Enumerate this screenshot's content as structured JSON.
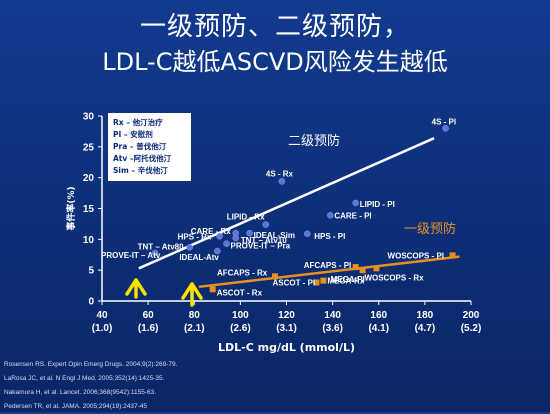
{
  "title_line1": "一级预防、二级预防，",
  "title_line2": "LDL-C越低ASCVD风险发生越低",
  "legend": [
    "Rx – 他汀治疗",
    "PI – 安慰剂",
    "Pra – 普伐他汀",
    "Atv –阿托伐他汀",
    "Sim – 辛伐他汀"
  ],
  "references": [
    "Rosensen RS. Expert Opin Emerg Drugs. 2004;9(2):269-79.",
    "LaRosa JC, et al. N Engl J Med. 2005;352(14):1425-35.",
    "Nakamura H, et al. Lancet. 2006;368(9542):1155-63.",
    "Pedersen TR, et al. JAMA. 2005;294(19):2437-45"
  ],
  "colors": {
    "secondary": "#5b74d6",
    "primary": "#e8901f",
    "line_secondary": "#ffffff",
    "arrow": "#f7e200"
  },
  "chart_data": {
    "type": "scatter",
    "xlabel": "LDL-C mg/dL (mmol/L)",
    "ylabel": "事件率(%)",
    "xlim": [
      40,
      200
    ],
    "ylim": [
      0,
      30
    ],
    "x_ticks": [
      {
        "v": 40,
        "l1": "40",
        "l2": "(1.0)"
      },
      {
        "v": 60,
        "l1": "60",
        "l2": "(1.6)"
      },
      {
        "v": 80,
        "l1": "80",
        "l2": "(2.1)"
      },
      {
        "v": 100,
        "l1": "100",
        "l2": "(2.6)"
      },
      {
        "v": 120,
        "l1": "120",
        "l2": "(3.1)"
      },
      {
        "v": 140,
        "l1": "140",
        "l2": "(3.6)"
      },
      {
        "v": 160,
        "l1": "160",
        "l2": "(4.1)"
      },
      {
        "v": 180,
        "l1": "180",
        "l2": "(4.7)"
      },
      {
        "v": 200,
        "l1": "200",
        "l2": "(5.2)"
      }
    ],
    "y_ticks": [
      0,
      5,
      10,
      15,
      20,
      25,
      30
    ],
    "series": [
      {
        "name": "二级预防",
        "marker": "circle",
        "points": [
          {
            "label": "4S - Pl",
            "x": 189,
            "y": 28.0
          },
          {
            "label": "4S - Rx",
            "x": 118,
            "y": 19.4
          },
          {
            "label": "LIPID - Pl",
            "x": 150,
            "y": 15.9
          },
          {
            "label": "CARE - Pl",
            "x": 139,
            "y": 13.9
          },
          {
            "label": "LIPID - Rx",
            "x": 111,
            "y": 12.4
          },
          {
            "label": "IDEAL-Sim",
            "x": 104,
            "y": 11.0
          },
          {
            "label": "CARE - Rx",
            "x": 98,
            "y": 11.0
          },
          {
            "label": "HPS - Rx",
            "x": 91,
            "y": 10.5
          },
          {
            "label": "TNT – Atv10",
            "x": 98,
            "y": 10.2
          },
          {
            "label": "HPS - Pl",
            "x": 129,
            "y": 10.9
          },
          {
            "label": "PROVE-IT – Pra",
            "x": 94,
            "y": 9.3
          },
          {
            "label": "IDEAL-Atv",
            "x": 90,
            "y": 8.1
          },
          {
            "label": "TNT – Atv80",
            "x": 78,
            "y": 8.7
          },
          {
            "label": "PROVE-IT – Atv",
            "x": 63,
            "y": 7.8
          }
        ]
      },
      {
        "name": "一级预防",
        "marker": "square",
        "points": [
          {
            "label": "AFCAPS - Rx",
            "x": 115,
            "y": 4.0
          },
          {
            "label": "ASCOT - Pl",
            "x": 133,
            "y": 3.0
          },
          {
            "label": "MEGA-Rx",
            "x": 136,
            "y": 3.3
          },
          {
            "label": "ASCOT - Rx",
            "x": 88,
            "y": 1.9
          },
          {
            "label": "AFCAPS - Pl",
            "x": 150,
            "y": 5.5
          },
          {
            "label": "MEGA-Pl",
            "x": 153,
            "y": 5.0
          },
          {
            "label": "WOSCOPS - Pl",
            "x": 192,
            "y": 7.4
          },
          {
            "label": "WOSCOPS - Rx",
            "x": 159,
            "y": 5.3
          }
        ]
      }
    ],
    "trend_lines": [
      {
        "name": "二级预防",
        "from": [
          56,
          5.3
        ],
        "to": [
          184,
          26.4
        ]
      },
      {
        "name": "一级预防",
        "from": [
          82,
          2.3
        ],
        "to": [
          195,
          7.2
        ]
      }
    ],
    "annotations": [
      "二级预防",
      "一级预防"
    ]
  }
}
